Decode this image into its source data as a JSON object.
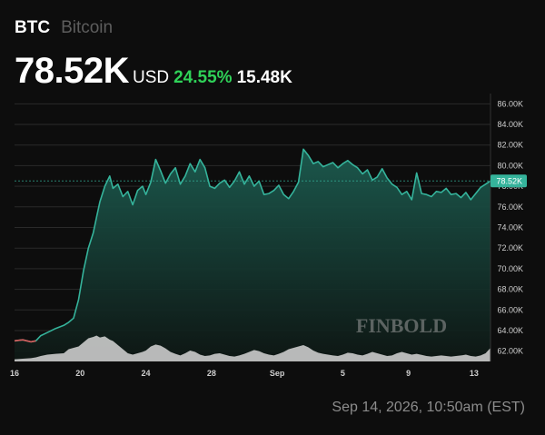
{
  "header": {
    "ticker": "BTC",
    "name": "Bitcoin",
    "price": "78.52K",
    "currency": "USD",
    "change_pct": "24.55%",
    "change_abs": "15.48K"
  },
  "timestamp": "Sep 14, 2026, 10:50am (EST)",
  "watermark": "FINBOLD",
  "colors": {
    "line": "#35b39b",
    "area_top": "#1c5c50",
    "area_bottom": "#0e1714",
    "volume": "#d6d6d6",
    "start_segment": "#d65b5b",
    "grid": "#2a2a2a",
    "positive": "#2fd158",
    "last_price_badge": "#35b39b"
  },
  "chart_data": {
    "type": "area",
    "title": "",
    "xlabel": "",
    "ylabel": "",
    "ylim": [
      61000,
      87000
    ],
    "xlim_days": [
      0,
      29
    ],
    "grid": true,
    "y_ticks": [
      "62.00K",
      "64.00K",
      "66.00K",
      "68.00K",
      "70.00K",
      "72.00K",
      "74.00K",
      "76.00K",
      "78.00K",
      "80.00K",
      "82.00K",
      "84.00K",
      "86.00K"
    ],
    "y_tick_values": [
      62000,
      64000,
      66000,
      68000,
      70000,
      72000,
      74000,
      76000,
      78000,
      80000,
      82000,
      84000,
      86000
    ],
    "x_ticks": [
      "16",
      "20",
      "24",
      "28",
      "Sep",
      "5",
      "9",
      "13"
    ],
    "x_tick_days": [
      0,
      4,
      8,
      12,
      16,
      20,
      24,
      28
    ],
    "last_price_label": "78.52K",
    "last_price": 78520,
    "series": [
      {
        "x_days": [
          0,
          0.5,
          1,
          1.3,
          1.6,
          2,
          2.5,
          3,
          3.3,
          3.6,
          3.9,
          4.2,
          4.5,
          4.8,
          5,
          5.2,
          5.5,
          5.8,
          6,
          6.3,
          6.6,
          6.9,
          7.2,
          7.5,
          7.8,
          8,
          8.3,
          8.6,
          8.9,
          9.2,
          9.5,
          9.8,
          10.1,
          10.4,
          10.7,
          11,
          11.3,
          11.6,
          11.9,
          12.2,
          12.5,
          12.8,
          13.1,
          13.4,
          13.7,
          14,
          14.3,
          14.6,
          14.9,
          15.2,
          15.5,
          15.8,
          16.1,
          16.4,
          16.7,
          17,
          17.3,
          17.6,
          17.9,
          18.2,
          18.5,
          18.8,
          19.1,
          19.4,
          19.7,
          20,
          20.3,
          20.6,
          20.9,
          21.2,
          21.5,
          21.8,
          22.1,
          22.4,
          22.7,
          23,
          23.3,
          23.6,
          23.9,
          24.2,
          24.5,
          24.8,
          25.1,
          25.4,
          25.7,
          26,
          26.3,
          26.6,
          26.9,
          27.2,
          27.5,
          27.8,
          28.1,
          28.4,
          28.7,
          29
        ],
        "price": [
          63000,
          63100,
          62900,
          63000,
          63500,
          63800,
          64200,
          64500,
          64800,
          65200,
          67000,
          69800,
          72000,
          73500,
          75000,
          76500,
          78000,
          79000,
          77800,
          78200,
          77000,
          77500,
          76200,
          77600,
          78000,
          77200,
          78400,
          80600,
          79500,
          78300,
          79200,
          79800,
          78200,
          79000,
          80200,
          79400,
          80600,
          79800,
          78000,
          77800,
          78300,
          78600,
          77900,
          78500,
          79400,
          78200,
          79000,
          78000,
          78500,
          77200,
          77300,
          77600,
          78100,
          77200,
          76800,
          77500,
          78400,
          81600,
          81000,
          80200,
          80400,
          79900,
          80100,
          80300,
          79800,
          80200,
          80500,
          80100,
          79800,
          79200,
          79600,
          78600,
          78900,
          79700,
          78800,
          78200,
          77900,
          77200,
          77500,
          76700,
          79300,
          77300,
          77200,
          77000,
          77500,
          77400,
          77800,
          77200,
          77300,
          76900,
          77400,
          76700,
          77300,
          77900,
          78200,
          78520
        ],
        "volume_rel": [
          0.08,
          0.1,
          0.12,
          0.15,
          0.2,
          0.25,
          0.28,
          0.3,
          0.45,
          0.5,
          0.55,
          0.7,
          0.85,
          0.9,
          0.95,
          0.88,
          0.92,
          0.8,
          0.75,
          0.6,
          0.45,
          0.3,
          0.25,
          0.3,
          0.35,
          0.4,
          0.55,
          0.62,
          0.58,
          0.48,
          0.35,
          0.28,
          0.22,
          0.3,
          0.4,
          0.35,
          0.25,
          0.2,
          0.22,
          0.28,
          0.3,
          0.25,
          0.2,
          0.18,
          0.22,
          0.28,
          0.35,
          0.42,
          0.38,
          0.3,
          0.25,
          0.22,
          0.28,
          0.35,
          0.45,
          0.5,
          0.55,
          0.6,
          0.52,
          0.4,
          0.32,
          0.28,
          0.25,
          0.22,
          0.2,
          0.25,
          0.32,
          0.3,
          0.25,
          0.22,
          0.28,
          0.35,
          0.3,
          0.25,
          0.2,
          0.22,
          0.3,
          0.35,
          0.3,
          0.25,
          0.28,
          0.24,
          0.2,
          0.18,
          0.2,
          0.22,
          0.2,
          0.18,
          0.2,
          0.22,
          0.25,
          0.2,
          0.18,
          0.22,
          0.3,
          0.5
        ]
      }
    ]
  }
}
